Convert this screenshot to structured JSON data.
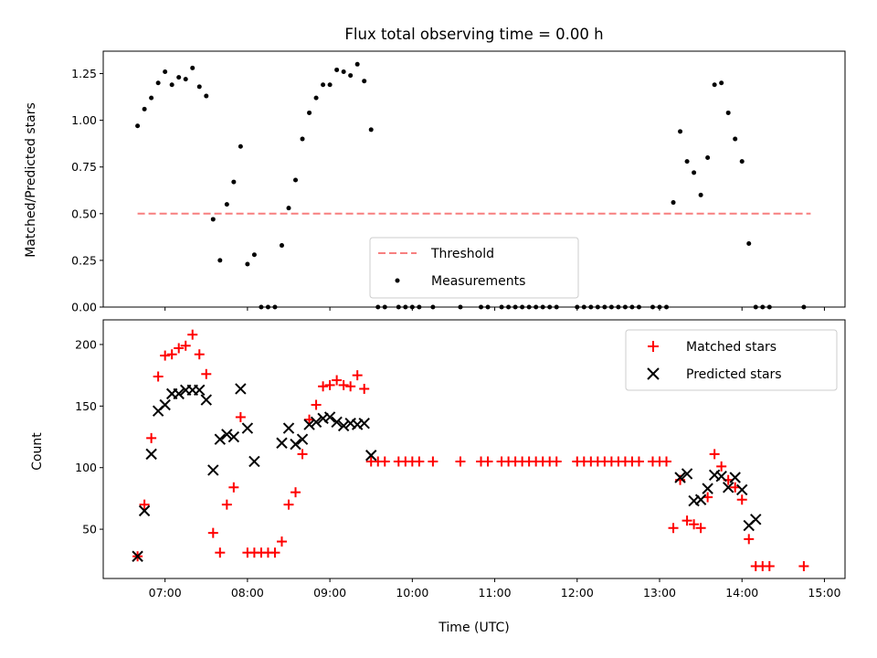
{
  "chart_data": [
    {
      "type": "scatter",
      "title": "Flux total observing time = 0.00 h",
      "xlabel": "",
      "ylabel": "Matched/Predicted stars",
      "xlim": [
        "06:15",
        "15:15"
      ],
      "ylim": [
        0,
        1.37
      ],
      "yticks": [
        "0.00",
        "0.25",
        "0.50",
        "0.75",
        "1.00",
        "1.25"
      ],
      "legend": {
        "location": "lower-center",
        "entries": [
          "Threshold",
          "Measurements"
        ]
      },
      "threshold": {
        "name": "Threshold",
        "value": 0.5,
        "x_start": "06:40",
        "x_end": "14:50",
        "color": "#f77f7f"
      },
      "series": [
        {
          "name": "Measurements",
          "color": "#000000",
          "x": [
            "06:40",
            "06:45",
            "06:50",
            "06:55",
            "07:00",
            "07:05",
            "07:10",
            "07:15",
            "07:20",
            "07:25",
            "07:30",
            "07:35",
            "07:40",
            "07:45",
            "07:50",
            "07:55",
            "08:00",
            "08:05",
            "08:10",
            "08:15",
            "08:20",
            "08:25",
            "08:30",
            "08:35",
            "08:40",
            "08:45",
            "08:50",
            "08:55",
            "09:00",
            "09:05",
            "09:10",
            "09:15",
            "09:20",
            "09:25",
            "09:30",
            "09:35",
            "09:40",
            "09:50",
            "09:55",
            "10:00",
            "10:05",
            "10:15",
            "10:35",
            "10:50",
            "10:55",
            "11:05",
            "11:10",
            "11:15",
            "11:20",
            "11:25",
            "11:30",
            "11:35",
            "11:40",
            "11:45",
            "12:00",
            "12:05",
            "12:10",
            "12:15",
            "12:20",
            "12:25",
            "12:30",
            "12:35",
            "12:40",
            "12:45",
            "12:55",
            "13:00",
            "13:05",
            "13:10",
            "13:15",
            "13:20",
            "13:25",
            "13:30",
            "13:35",
            "13:40",
            "13:45",
            "13:50",
            "13:55",
            "14:00",
            "14:05",
            "14:10",
            "14:15",
            "14:20",
            "14:45"
          ],
          "y": [
            0.97,
            1.06,
            1.12,
            1.2,
            1.26,
            1.19,
            1.23,
            1.22,
            1.28,
            1.18,
            1.13,
            0.47,
            0.25,
            0.55,
            0.67,
            0.86,
            0.23,
            0.28,
            0,
            0,
            0,
            0.33,
            0.53,
            0.68,
            0.9,
            1.04,
            1.12,
            1.19,
            1.19,
            1.27,
            1.26,
            1.24,
            1.3,
            1.21,
            0.95,
            0,
            0,
            0,
            0,
            0,
            0,
            0,
            0,
            0,
            0,
            0,
            0,
            0,
            0,
            0,
            0,
            0,
            0,
            0,
            0,
            0,
            0,
            0,
            0,
            0,
            0,
            0,
            0,
            0,
            0,
            0,
            0,
            0.56,
            0.94,
            0.78,
            0.72,
            0.6,
            0.8,
            1.19,
            1.2,
            1.04,
            0.9,
            0.78,
            0.34,
            0,
            0,
            0,
            0
          ]
        }
      ]
    },
    {
      "type": "scatter",
      "title": "",
      "xlabel": "Time (UTC)",
      "ylabel": "Count",
      "xlim": [
        "06:15",
        "15:15"
      ],
      "ylim": [
        10,
        220
      ],
      "xticks": [
        "07:00",
        "08:00",
        "09:00",
        "10:00",
        "11:00",
        "12:00",
        "13:00",
        "14:00",
        "15:00"
      ],
      "yticks": [
        "50",
        "100",
        "150",
        "200"
      ],
      "legend": {
        "location": "top-right",
        "entries": [
          "Matched stars",
          "Predicted stars"
        ]
      },
      "series": [
        {
          "name": "Matched stars",
          "marker": "plus",
          "color": "#ff0000",
          "x": [
            "06:40",
            "06:45",
            "06:50",
            "06:55",
            "07:00",
            "07:05",
            "07:10",
            "07:15",
            "07:20",
            "07:25",
            "07:30",
            "07:35",
            "07:40",
            "07:45",
            "07:50",
            "07:55",
            "08:00",
            "08:05",
            "08:10",
            "08:15",
            "08:20",
            "08:25",
            "08:30",
            "08:35",
            "08:40",
            "08:45",
            "08:50",
            "08:55",
            "09:00",
            "09:05",
            "09:10",
            "09:15",
            "09:20",
            "09:25",
            "09:30",
            "09:35",
            "09:40",
            "09:50",
            "09:55",
            "10:00",
            "10:05",
            "10:15",
            "10:35",
            "10:50",
            "10:55",
            "11:05",
            "11:10",
            "11:15",
            "11:20",
            "11:25",
            "11:30",
            "11:35",
            "11:40",
            "11:45",
            "12:00",
            "12:05",
            "12:10",
            "12:15",
            "12:20",
            "12:25",
            "12:30",
            "12:35",
            "12:40",
            "12:45",
            "12:55",
            "13:00",
            "13:05",
            "13:10",
            "13:15",
            "13:20",
            "13:25",
            "13:30",
            "13:35",
            "13:40",
            "13:45",
            "13:50",
            "13:55",
            "14:00",
            "14:05",
            "14:10",
            "14:15",
            "14:20",
            "14:45"
          ],
          "y": [
            28,
            70,
            124,
            174,
            191,
            192,
            197,
            199,
            208,
            192,
            176,
            47,
            31,
            70,
            84,
            141,
            31,
            31,
            31,
            31,
            31,
            40,
            70,
            80,
            111,
            139,
            151,
            166,
            167,
            171,
            167,
            166,
            175,
            164,
            105,
            105,
            105,
            105,
            105,
            105,
            105,
            105,
            105,
            105,
            105,
            105,
            105,
            105,
            105,
            105,
            105,
            105,
            105,
            105,
            105,
            105,
            105,
            105,
            105,
            105,
            105,
            105,
            105,
            105,
            105,
            105,
            105,
            51,
            90,
            57,
            54,
            51,
            76,
            111,
            101,
            90,
            84,
            74,
            42,
            20,
            20,
            20,
            20
          ]
        },
        {
          "name": "Predicted stars",
          "marker": "x",
          "color": "#000000",
          "x": [
            "06:40",
            "06:45",
            "06:50",
            "06:55",
            "07:00",
            "07:05",
            "07:10",
            "07:15",
            "07:20",
            "07:25",
            "07:30",
            "07:35",
            "07:40",
            "07:45",
            "07:50",
            "07:55",
            "08:00",
            "08:05",
            "08:25",
            "08:30",
            "08:35",
            "08:40",
            "08:45",
            "08:50",
            "08:55",
            "09:00",
            "09:05",
            "09:10",
            "09:15",
            "09:20",
            "09:25",
            "09:30",
            "13:15",
            "13:20",
            "13:25",
            "13:30",
            "13:35",
            "13:40",
            "13:45",
            "13:50",
            "13:55",
            "14:00",
            "14:05",
            "14:10"
          ],
          "y": [
            28,
            65,
            111,
            146,
            151,
            160,
            160,
            163,
            163,
            163,
            155,
            98,
            123,
            127,
            125,
            164,
            132,
            105,
            120,
            132,
            119,
            123,
            135,
            137,
            140,
            141,
            137,
            134,
            136,
            135,
            136,
            110,
            92,
            95,
            73,
            74,
            83,
            94,
            93,
            84,
            92,
            82,
            53,
            58
          ]
        }
      ]
    }
  ]
}
